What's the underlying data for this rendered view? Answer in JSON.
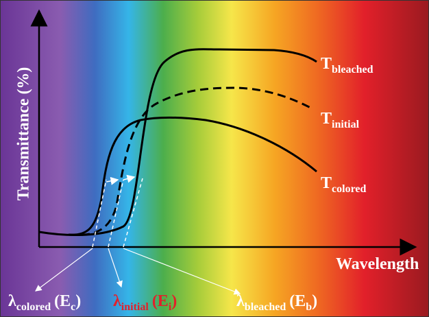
{
  "axes": {
    "y_label": "Transmittance (%)",
    "x_label": "Wavelength"
  },
  "curves": [
    {
      "symbol": "T",
      "subscript": "bleached"
    },
    {
      "symbol": "T",
      "subscript": "initial"
    },
    {
      "symbol": "T",
      "subscript": "colored"
    }
  ],
  "wavelengths": [
    {
      "symbol": "λ",
      "subscript": "colored",
      "energy": "(E",
      "energy_subscript": "c",
      "close": ")"
    },
    {
      "symbol": "λ",
      "subscript": "initial",
      "energy": "(E",
      "energy_subscript": "i",
      "close": ")"
    },
    {
      "symbol": "λ",
      "subscript": "bleached",
      "energy": "(E",
      "energy_subscript": "b",
      "close": ")"
    }
  ]
}
